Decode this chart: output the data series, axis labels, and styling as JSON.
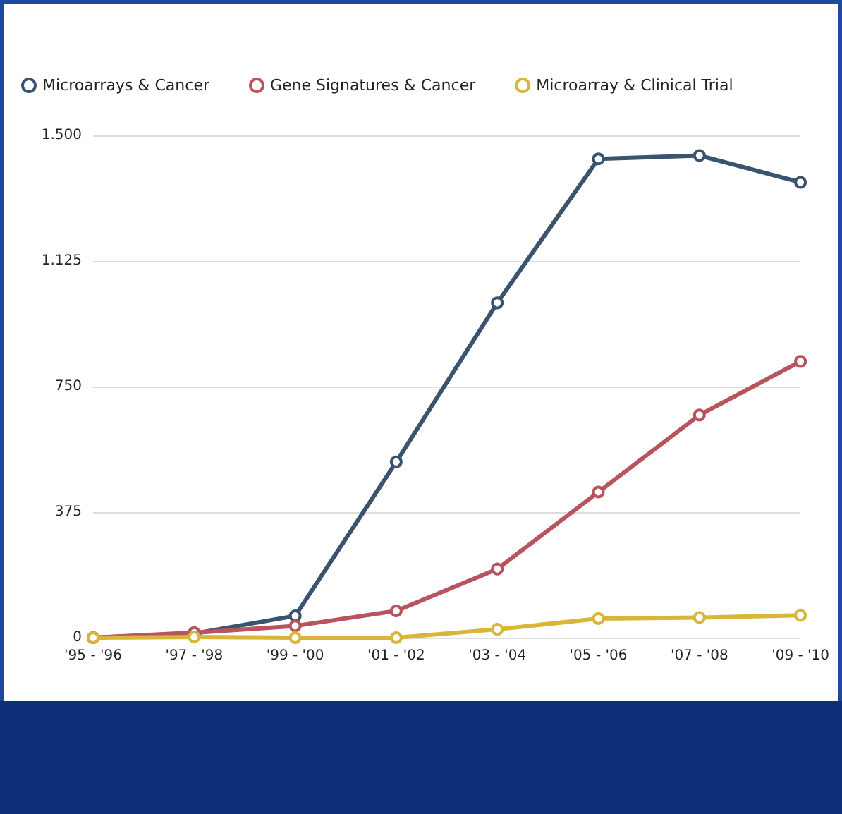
{
  "chart_data": {
    "type": "line",
    "categories": [
      "'95 - '96",
      "'97 - '98",
      "'99 - '00",
      "'01 - '02",
      "'03 - '04",
      "'05 - '06",
      "'07 - '08",
      "'09 - '10"
    ],
    "series": [
      {
        "name": "Microarrays & Cancer",
        "color": "#3a5470",
        "values": [
          0,
          12,
          65,
          525,
          1000,
          1430,
          1440,
          1360
        ]
      },
      {
        "name": "Gene Signatures & Cancer",
        "color": "#b8545e",
        "values": [
          0,
          15,
          35,
          80,
          205,
          435,
          665,
          825
        ]
      },
      {
        "name": "Microarray & Clinical Trial",
        "color": "#d9b63a",
        "values": [
          0,
          2,
          0,
          0,
          25,
          57,
          60,
          67
        ]
      }
    ],
    "ylim": [
      0,
      1500
    ],
    "yticks": [
      0,
      375,
      750,
      {
        "value": 1125,
        "label": "1.125"
      },
      {
        "value": 1500,
        "label": "1.500"
      }
    ],
    "grid": "y",
    "legend": "top left",
    "marker": "circle",
    "line_style": "solid"
  }
}
